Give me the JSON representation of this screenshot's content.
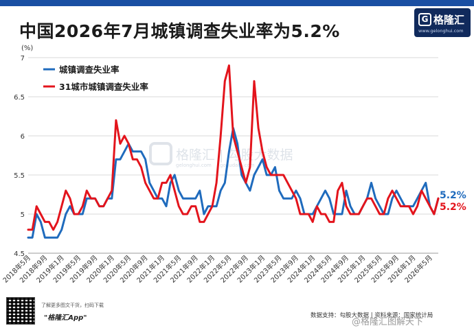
{
  "title": "中国2026年7月城镇调查失业率为5.2%",
  "logo": {
    "mark": "G",
    "name": "格隆汇",
    "url": "www.gelonghui.com"
  },
  "colors": {
    "urban": "#1f6bbd",
    "city31": "#e3141c",
    "accent": "#1a4fa3"
  },
  "watermark": {
    "name": "格隆汇",
    "url": "gelonghui.com",
    "text": "格隆汇 | 勾股大数据",
    "url2": "gogudata.com"
  },
  "footer": {
    "qr_label": "了解更多图文干货，扫码下载",
    "app_label": "\"格隆汇App\"",
    "source": "数据支持：勾股大数据 | 资料来源：国家统计局",
    "weibo": "@格隆汇图解天下"
  },
  "chart_data": {
    "type": "line",
    "title": "中国2026年7月城镇调查失业率为5.2%",
    "unit": "(%)",
    "ylim": [
      4.5,
      7
    ],
    "yticks": [
      "4.5",
      "5",
      "5.5",
      "6",
      "6.5",
      "7"
    ],
    "grid": true,
    "legend_position": "top-left",
    "x": [
      "2018年5月",
      "2018年6月",
      "2018年7月",
      "2018年8月",
      "2018年9月",
      "2018年10月",
      "2018年11月",
      "2018年12月",
      "2019年1月",
      "2019年2月",
      "2019年3月",
      "2019年4月",
      "2019年5月",
      "2019年6月",
      "2019年7月",
      "2019年8月",
      "2019年9月",
      "2019年10月",
      "2019年11月",
      "2019年12月",
      "2020年1月",
      "2020年2月",
      "2020年3月",
      "2020年4月",
      "2020年5月",
      "2020年6月",
      "2020年7月",
      "2020年8月",
      "2020年9月",
      "2020年10月",
      "2020年11月",
      "2020年12月",
      "2021年1月",
      "2021年2月",
      "2021年3月",
      "2021年4月",
      "2021年5月",
      "2021年6月",
      "2021年7月",
      "2021年8月",
      "2021年9月",
      "2021年10月",
      "2021年11月",
      "2021年12月",
      "2022年1月",
      "2022年2月",
      "2022年3月",
      "2022年4月",
      "2022年5月",
      "2022年6月",
      "2022年7月",
      "2022年8月",
      "2022年9月",
      "2022年10月",
      "2022年11月",
      "2022年12月",
      "2023年1月",
      "2023年2月",
      "2023年3月",
      "2023年4月",
      "2023年5月",
      "2023年6月",
      "2023年7月",
      "2023年8月",
      "2023年9月",
      "2023年10月",
      "2023年11月",
      "2023年12月",
      "2024年1月",
      "2024年2月",
      "2024年3月",
      "2024年4月",
      "2024年5月",
      "2024年6月",
      "2024年7月",
      "2024年8月",
      "2024年9月",
      "2024年10月",
      "2024年11月",
      "2024年12月",
      "2025年1月",
      "2025年2月",
      "2025年3月",
      "2025年4月",
      "2025年5月",
      "2025年6月",
      "2025年7月",
      "2025年8月",
      "2025年9月",
      "2025年10月",
      "2025年11月",
      "2025年12月",
      "2026年1月",
      "2026年2月",
      "2026年3月",
      "2026年4月",
      "2026年5月",
      "2026年6月",
      "2026年7月"
    ],
    "xtick_labels": [
      "2018年5月",
      "2018年9月",
      "2019年1月",
      "2019年5月",
      "2019年9月",
      "2020年1月",
      "2020年5月",
      "2020年9月",
      "2021年1月",
      "2021年5月",
      "2021年9月",
      "2022年1月",
      "2022年5月",
      "2022年9月",
      "2023年1月",
      "2023年5月",
      "2023年9月",
      "2024年1月",
      "2024年5月",
      "2024年9月",
      "2025年1月",
      "2025年5月",
      "2025年9月",
      "2026年1月",
      "2026年5月"
    ],
    "series": [
      {
        "name": "城镇调查失业率",
        "color": "#1f6bbd",
        "end_label": "5.2%",
        "values": [
          4.7,
          4.7,
          5.0,
          4.9,
          4.7,
          4.7,
          4.7,
          4.7,
          4.8,
          5.0,
          5.1,
          5.0,
          5.0,
          5.0,
          5.2,
          5.2,
          5.2,
          5.1,
          5.1,
          5.2,
          5.2,
          5.7,
          5.7,
          5.8,
          5.9,
          5.8,
          5.8,
          5.8,
          5.7,
          5.4,
          5.3,
          5.2,
          5.2,
          5.1,
          5.4,
          5.5,
          5.3,
          5.2,
          5.2,
          5.2,
          5.2,
          5.3,
          5.0,
          5.1,
          5.1,
          5.1,
          5.3,
          5.4,
          5.8,
          6.1,
          5.9,
          5.5,
          5.4,
          5.3,
          5.5,
          5.6,
          5.7,
          5.5,
          5.5,
          5.6,
          5.3,
          5.2,
          5.2,
          5.2,
          5.3,
          5.2,
          5.0,
          5.0,
          5.0,
          5.1,
          5.2,
          5.3,
          5.2,
          5.0,
          5.0,
          5.0,
          5.3,
          5.1,
          5.0,
          5.0,
          5.1,
          5.2,
          5.4,
          5.2,
          5.1,
          5.0,
          5.0,
          5.2,
          5.3,
          5.2,
          5.1,
          5.1,
          5.1,
          5.2,
          5.3,
          5.4,
          5.1,
          5.0,
          5.2
        ]
      },
      {
        "name": "31城市城镇调查失业率",
        "color": "#e3141c",
        "end_label": "5.2%",
        "values": [
          4.8,
          4.8,
          5.1,
          5.0,
          4.9,
          4.9,
          4.8,
          4.9,
          5.1,
          5.3,
          5.2,
          5.0,
          5.0,
          5.1,
          5.3,
          5.2,
          5.2,
          5.1,
          5.1,
          5.2,
          5.3,
          6.2,
          5.9,
          6.0,
          5.9,
          5.7,
          5.7,
          5.6,
          5.4,
          5.3,
          5.2,
          5.2,
          5.4,
          5.4,
          5.5,
          5.3,
          5.1,
          5.0,
          5.0,
          5.1,
          5.1,
          4.9,
          4.9,
          5.0,
          5.1,
          5.4,
          6.0,
          6.7,
          6.9,
          6.0,
          5.8,
          5.6,
          5.4,
          5.6,
          6.7,
          6.1,
          5.8,
          5.6,
          5.5,
          5.5,
          5.5,
          5.5,
          5.4,
          5.3,
          5.2,
          5.0,
          5.0,
          5.0,
          4.9,
          5.1,
          5.0,
          5.0,
          4.9,
          4.9,
          5.3,
          5.4,
          5.1,
          5.0,
          5.0,
          5.0,
          5.1,
          5.2,
          5.2,
          5.1,
          5.0,
          5.0,
          5.2,
          5.3,
          5.2,
          5.1,
          5.1,
          5.1,
          5.0,
          5.1,
          5.3,
          5.2,
          5.1,
          5.0,
          5.2
        ]
      }
    ]
  }
}
